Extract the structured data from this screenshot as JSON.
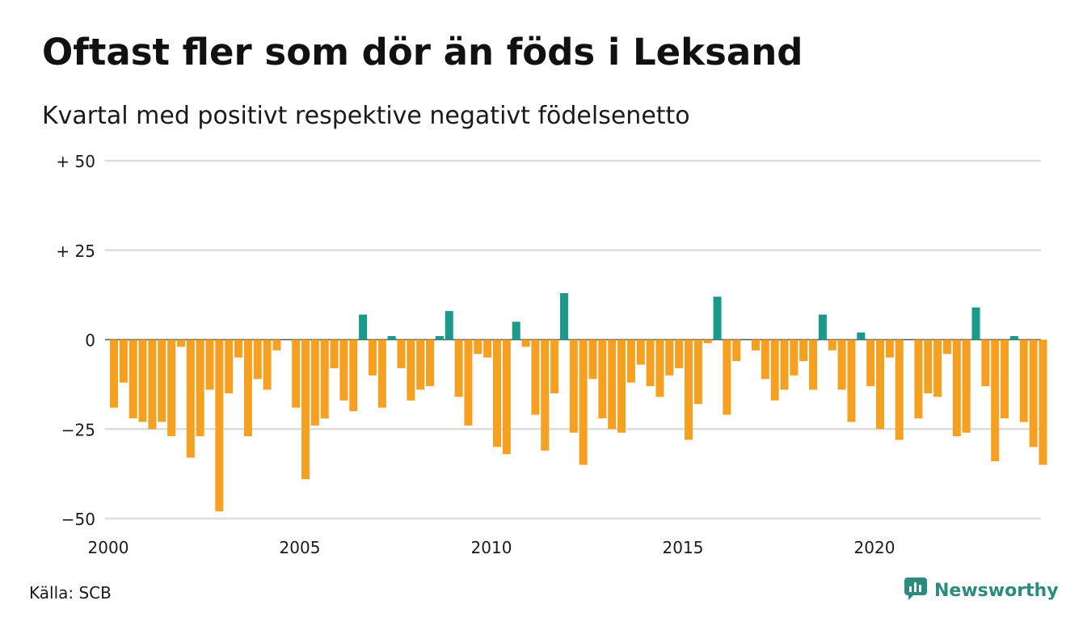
{
  "header": {
    "title": "Oftast fler som dör än föds i Leksand",
    "subtitle": "Kvartal med positivt respektive negativt födelsenetto"
  },
  "footer": {
    "source": "Källa: SCB",
    "brand": "Newsworthy",
    "brand_icon": "newsworthy-logo-icon"
  },
  "colors": {
    "positive": "#1a9a8a",
    "negative": "#f5a020",
    "grid": "#dddddd",
    "brand": "#2a8c80"
  },
  "chart_data": {
    "type": "bar",
    "title": "Oftast fler som dör än föds i Leksand",
    "subtitle": "Kvartal med positivt respektive negativt födelsenetto",
    "x_start_year": 2000,
    "periods_per_year": 4,
    "ylim": [
      -50,
      50
    ],
    "y_ticks": [
      50,
      25,
      0,
      -25,
      -50
    ],
    "y_tick_labels": [
      "+ 50",
      "+ 25",
      "0",
      "−25",
      "−50"
    ],
    "x_ticks": [
      2000,
      2005,
      2010,
      2015,
      2020
    ],
    "x_tick_labels": [
      "2000",
      "2005",
      "2010",
      "2015",
      "2020"
    ],
    "grid": true,
    "legend": "none",
    "values": [
      -19,
      -12,
      -22,
      -23,
      -25,
      -23,
      -27,
      -2,
      -33,
      -27,
      -14,
      -48,
      -15,
      -5,
      -27,
      -11,
      -14,
      -3,
      0,
      -19,
      -39,
      -24,
      -22,
      -8,
      -17,
      -20,
      7,
      -10,
      -19,
      1,
      -8,
      -17,
      -14,
      -13,
      1,
      8,
      -16,
      -24,
      -4,
      -5,
      -30,
      -32,
      5,
      -2,
      -21,
      -31,
      -15,
      13,
      -26,
      -35,
      -11,
      -22,
      -25,
      -26,
      -12,
      -7,
      -13,
      -16,
      -10,
      -8,
      -28,
      -18,
      -1,
      12,
      -21,
      -6,
      0,
      -3,
      -11,
      -17,
      -14,
      -10,
      -6,
      -14,
      7,
      -3,
      -14,
      -23,
      2,
      -13,
      -25,
      -5,
      -28,
      0,
      -22,
      -15,
      -16,
      -4,
      -27,
      -26,
      9,
      -13,
      -34,
      -22,
      1,
      -23,
      -30,
      -35
    ]
  }
}
